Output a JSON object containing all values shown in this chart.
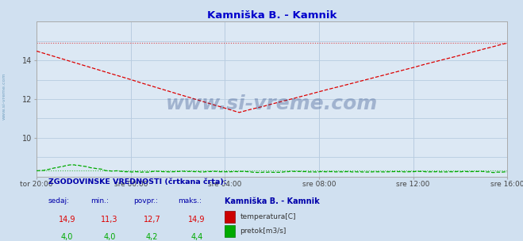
{
  "title": "Kamniška B. - Kamnik",
  "title_color": "#0000cc",
  "bg_color": "#d0e0f0",
  "plot_bg_color": "#dce8f4",
  "grid_color": "#b8cce0",
  "x_labels": [
    "tor 20:00",
    "sre 00:00",
    "sre 04:00",
    "sre 08:00",
    "sre 12:00",
    "sre 16:00"
  ],
  "x_ticks_norm": [
    0.0,
    0.2,
    0.4,
    0.6,
    0.8,
    1.0
  ],
  "ylim": [
    8.0,
    16.0
  ],
  "yticks": [
    10,
    12,
    14
  ],
  "temp_color": "#dd0000",
  "flow_color": "#00aa00",
  "watermark": "www.si-vreme.com",
  "watermark_color": "#1a3a7a",
  "sidebar_text": "www.si-vreme.com",
  "sidebar_color": "#6699bb",
  "footer_title": "ZGODOVINSKE VREDNOSTI (črtkana črta):",
  "footer_color": "#0000aa",
  "legend_station": "Kamniška B. - Kamnik",
  "legend_temp_label": "temperatura[C]",
  "legend_flow_label": "pretok[m3/s]",
  "stats_headers": [
    "sedaj:",
    "min.:",
    "povpr.:",
    "maks.:"
  ],
  "stats_temp": [
    "14,9",
    "11,3",
    "12,7",
    "14,9"
  ],
  "stats_flow": [
    "4,0",
    "4,0",
    "4,2",
    "4,4"
  ],
  "hist_temp_value": 14.9,
  "hist_flow_display": 8.3,
  "n_points": 289
}
